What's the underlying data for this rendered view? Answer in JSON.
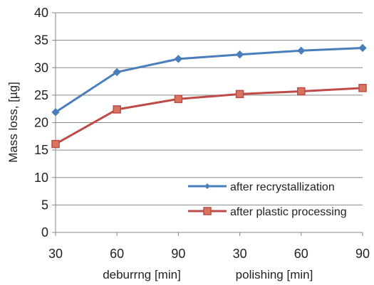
{
  "chart_data": {
    "type": "line",
    "categories": [
      "30",
      "60",
      "90",
      "30",
      "60",
      "90"
    ],
    "group_labels": [
      "deburrng [min]",
      "polishing [min]"
    ],
    "ylabel": "Mass loss, [µg]",
    "ylim": [
      0,
      40
    ],
    "yticks": [
      "0",
      "5",
      "10",
      "15",
      "20",
      "25",
      "30",
      "35",
      "40"
    ],
    "grid": "horizontal",
    "legend_position": "bottom-right",
    "series": [
      {
        "name": "after recrystallization",
        "values": [
          21.9,
          29.2,
          31.6,
          32.4,
          33.1,
          33.6
        ],
        "color": "#4a7ebb",
        "marker": "diamond"
      },
      {
        "name": "after plastic processing",
        "values": [
          16.1,
          22.4,
          24.3,
          25.2,
          25.7,
          26.3
        ],
        "color": "#be4b48",
        "marker": "square"
      }
    ]
  }
}
